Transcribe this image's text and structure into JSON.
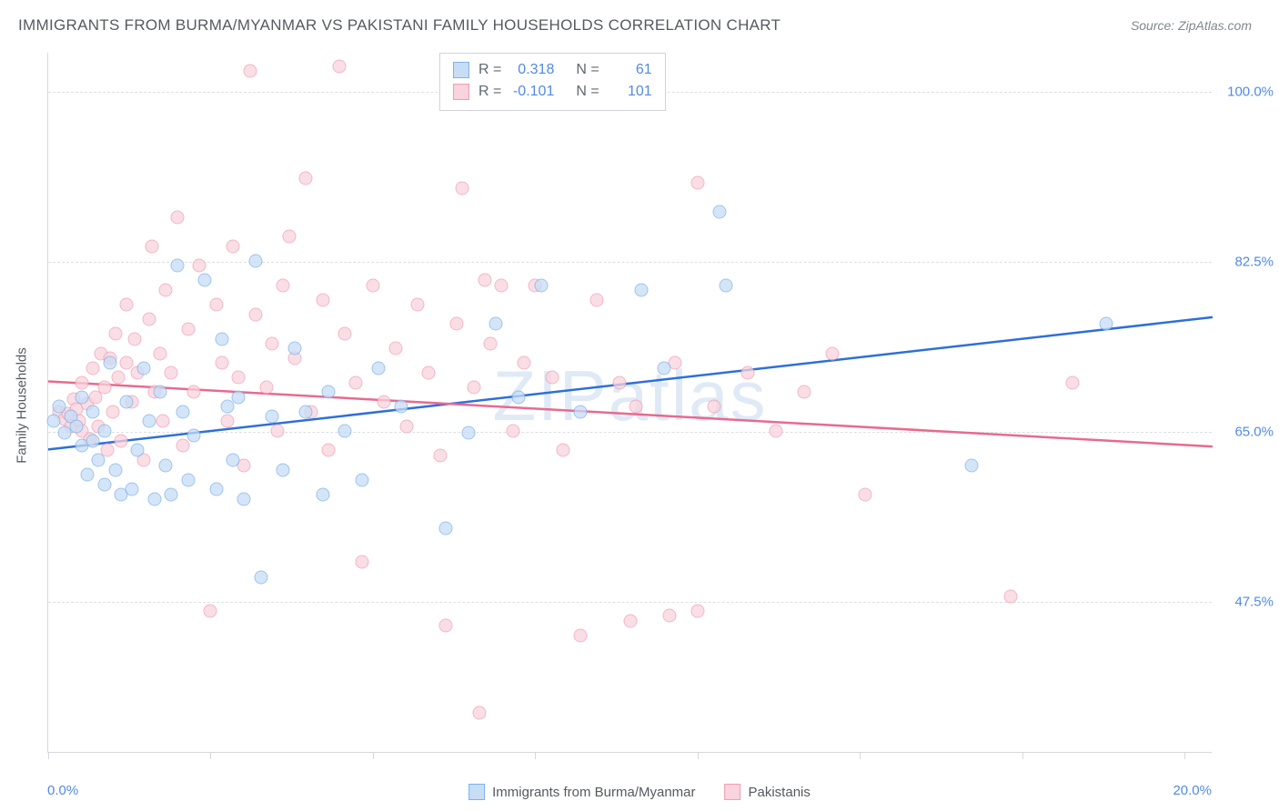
{
  "title": "IMMIGRANTS FROM BURMA/MYANMAR VS PAKISTANI FAMILY HOUSEHOLDS CORRELATION CHART",
  "source": "Source: ZipAtlas.com",
  "watermark": "ZIPatlas",
  "y_axis_label": "Family Households",
  "x_min_label": "0.0%",
  "x_max_label": "20.0%",
  "chart": {
    "type": "scatter",
    "xlim": [
      0,
      20.8
    ],
    "ylim": [
      32,
      104
    ],
    "y_gridlines": [
      47.5,
      65.0,
      82.5,
      100.0
    ],
    "y_tick_labels": [
      "47.5%",
      "65.0%",
      "82.5%",
      "100.0%"
    ],
    "x_ticks": [
      0,
      2.9,
      5.8,
      8.7,
      11.6,
      14.5,
      17.4,
      20.3
    ],
    "background_color": "#ffffff",
    "grid_color": "#dcdfe2",
    "axis_color": "#d5d8db",
    "label_color": "#555a60",
    "tick_value_color": "#518ae6",
    "title_fontsize": 17,
    "label_fontsize": 15,
    "marker_size": 15,
    "series": [
      {
        "name": "Immigrants from Burma/Myanmar",
        "fill": "#c7ddf6",
        "stroke": "#7cb1ea",
        "fill_opacity": 0.75,
        "R": "0.318",
        "N": "61",
        "trend": {
          "x1": 0,
          "y1": 63.2,
          "x2": 20.8,
          "y2": 76.8,
          "color": "#2f6fd8",
          "width": 2.5
        },
        "points": [
          [
            0.1,
            66
          ],
          [
            0.2,
            67.5
          ],
          [
            0.3,
            64.8
          ],
          [
            0.4,
            66.5
          ],
          [
            0.5,
            65.5
          ],
          [
            0.6,
            63.5
          ],
          [
            0.6,
            68.5
          ],
          [
            0.7,
            60.5
          ],
          [
            0.8,
            67
          ],
          [
            0.8,
            64
          ],
          [
            0.9,
            62
          ],
          [
            1.0,
            65
          ],
          [
            1.0,
            59.5
          ],
          [
            1.1,
            72
          ],
          [
            1.2,
            61
          ],
          [
            1.3,
            58.5
          ],
          [
            1.4,
            68
          ],
          [
            1.5,
            59
          ],
          [
            1.6,
            63
          ],
          [
            1.7,
            71.5
          ],
          [
            1.8,
            66
          ],
          [
            1.9,
            58
          ],
          [
            2.0,
            69
          ],
          [
            2.1,
            61.5
          ],
          [
            2.2,
            58.5
          ],
          [
            2.3,
            82
          ],
          [
            2.4,
            67
          ],
          [
            2.5,
            60
          ],
          [
            2.6,
            64.5
          ],
          [
            2.8,
            80.5
          ],
          [
            3.0,
            59
          ],
          [
            3.1,
            74.5
          ],
          [
            3.2,
            67.5
          ],
          [
            3.3,
            62
          ],
          [
            3.4,
            68.5
          ],
          [
            3.5,
            58
          ],
          [
            3.7,
            82.5
          ],
          [
            3.8,
            50
          ],
          [
            4.0,
            66.5
          ],
          [
            4.2,
            61
          ],
          [
            4.4,
            73.5
          ],
          [
            4.6,
            67
          ],
          [
            4.9,
            58.5
          ],
          [
            5.0,
            69
          ],
          [
            5.3,
            65
          ],
          [
            5.6,
            60
          ],
          [
            5.9,
            71.5
          ],
          [
            6.3,
            67.5
          ],
          [
            7.1,
            55
          ],
          [
            7.5,
            64.8
          ],
          [
            8.0,
            76
          ],
          [
            8.4,
            68.5
          ],
          [
            8.8,
            80
          ],
          [
            9.5,
            67
          ],
          [
            10.6,
            79.5
          ],
          [
            11.0,
            71.5
          ],
          [
            12.0,
            87.5
          ],
          [
            12.1,
            80
          ],
          [
            16.5,
            61.5
          ],
          [
            18.9,
            76
          ]
        ]
      },
      {
        "name": "Pakistanis",
        "fill": "#f9d3dd",
        "stroke": "#ef9eb4",
        "fill_opacity": 0.75,
        "R": "-0.101",
        "N": "101",
        "trend": {
          "x1": 0,
          "y1": 70.2,
          "x2": 20.8,
          "y2": 63.5,
          "color": "#e86a8f",
          "width": 2.5
        },
        "points": [
          [
            0.2,
            67
          ],
          [
            0.3,
            66.2
          ],
          [
            0.35,
            66.8
          ],
          [
            0.4,
            65.5
          ],
          [
            0.45,
            68.3
          ],
          [
            0.5,
            67.3
          ],
          [
            0.55,
            66
          ],
          [
            0.6,
            65
          ],
          [
            0.6,
            70
          ],
          [
            0.7,
            67.8
          ],
          [
            0.75,
            64.2
          ],
          [
            0.8,
            71.5
          ],
          [
            0.85,
            68.5
          ],
          [
            0.9,
            65.5
          ],
          [
            0.95,
            73
          ],
          [
            1.0,
            69.5
          ],
          [
            1.05,
            63
          ],
          [
            1.1,
            72.5
          ],
          [
            1.15,
            67
          ],
          [
            1.2,
            75
          ],
          [
            1.25,
            70.5
          ],
          [
            1.3,
            64
          ],
          [
            1.4,
            78
          ],
          [
            1.4,
            72
          ],
          [
            1.5,
            68
          ],
          [
            1.55,
            74.5
          ],
          [
            1.6,
            71
          ],
          [
            1.7,
            62
          ],
          [
            1.8,
            76.5
          ],
          [
            1.85,
            84
          ],
          [
            1.9,
            69
          ],
          [
            2.0,
            73
          ],
          [
            2.05,
            66
          ],
          [
            2.1,
            79.5
          ],
          [
            2.2,
            71
          ],
          [
            2.3,
            87
          ],
          [
            2.4,
            63.5
          ],
          [
            2.5,
            75.5
          ],
          [
            2.6,
            69
          ],
          [
            2.7,
            82
          ],
          [
            2.9,
            46.5
          ],
          [
            3.0,
            78
          ],
          [
            3.1,
            72
          ],
          [
            3.2,
            66
          ],
          [
            3.3,
            84
          ],
          [
            3.4,
            70.5
          ],
          [
            3.5,
            61.5
          ],
          [
            3.6,
            102
          ],
          [
            3.7,
            77
          ],
          [
            3.9,
            69.5
          ],
          [
            4.0,
            74
          ],
          [
            4.1,
            65
          ],
          [
            4.2,
            80
          ],
          [
            4.3,
            85
          ],
          [
            4.4,
            72.5
          ],
          [
            4.6,
            91
          ],
          [
            4.7,
            67
          ],
          [
            4.9,
            78.5
          ],
          [
            5.0,
            63
          ],
          [
            5.2,
            102.5
          ],
          [
            5.3,
            75
          ],
          [
            5.5,
            70
          ],
          [
            5.6,
            51.5
          ],
          [
            5.8,
            80
          ],
          [
            6.0,
            68
          ],
          [
            6.2,
            73.5
          ],
          [
            6.4,
            65.5
          ],
          [
            6.6,
            78
          ],
          [
            6.8,
            71
          ],
          [
            7.0,
            62.5
          ],
          [
            7.1,
            45
          ],
          [
            7.3,
            76
          ],
          [
            7.4,
            90
          ],
          [
            7.6,
            69.5
          ],
          [
            7.7,
            36
          ],
          [
            7.8,
            80.5
          ],
          [
            7.9,
            74
          ],
          [
            8.1,
            80
          ],
          [
            8.3,
            65
          ],
          [
            8.5,
            72
          ],
          [
            8.7,
            80
          ],
          [
            9.0,
            70.5
          ],
          [
            9.2,
            63
          ],
          [
            9.5,
            44
          ],
          [
            9.8,
            78.5
          ],
          [
            10.2,
            70
          ],
          [
            10.4,
            45.5
          ],
          [
            10.5,
            67.5
          ],
          [
            11.1,
            46
          ],
          [
            11.2,
            72
          ],
          [
            11.6,
            46.5
          ],
          [
            11.6,
            90.5
          ],
          [
            11.9,
            67.5
          ],
          [
            12.5,
            71
          ],
          [
            13.0,
            65
          ],
          [
            13.5,
            69
          ],
          [
            14.0,
            73
          ],
          [
            14.6,
            58.5
          ],
          [
            17.2,
            48
          ],
          [
            18.3,
            70
          ]
        ]
      }
    ]
  },
  "bottom_legend": [
    {
      "label": "Immigrants from Burma/Myanmar",
      "fill": "#c7ddf6",
      "stroke": "#7cb1ea"
    },
    {
      "label": "Pakistanis",
      "fill": "#f9d3dd",
      "stroke": "#ef9eb4"
    }
  ]
}
